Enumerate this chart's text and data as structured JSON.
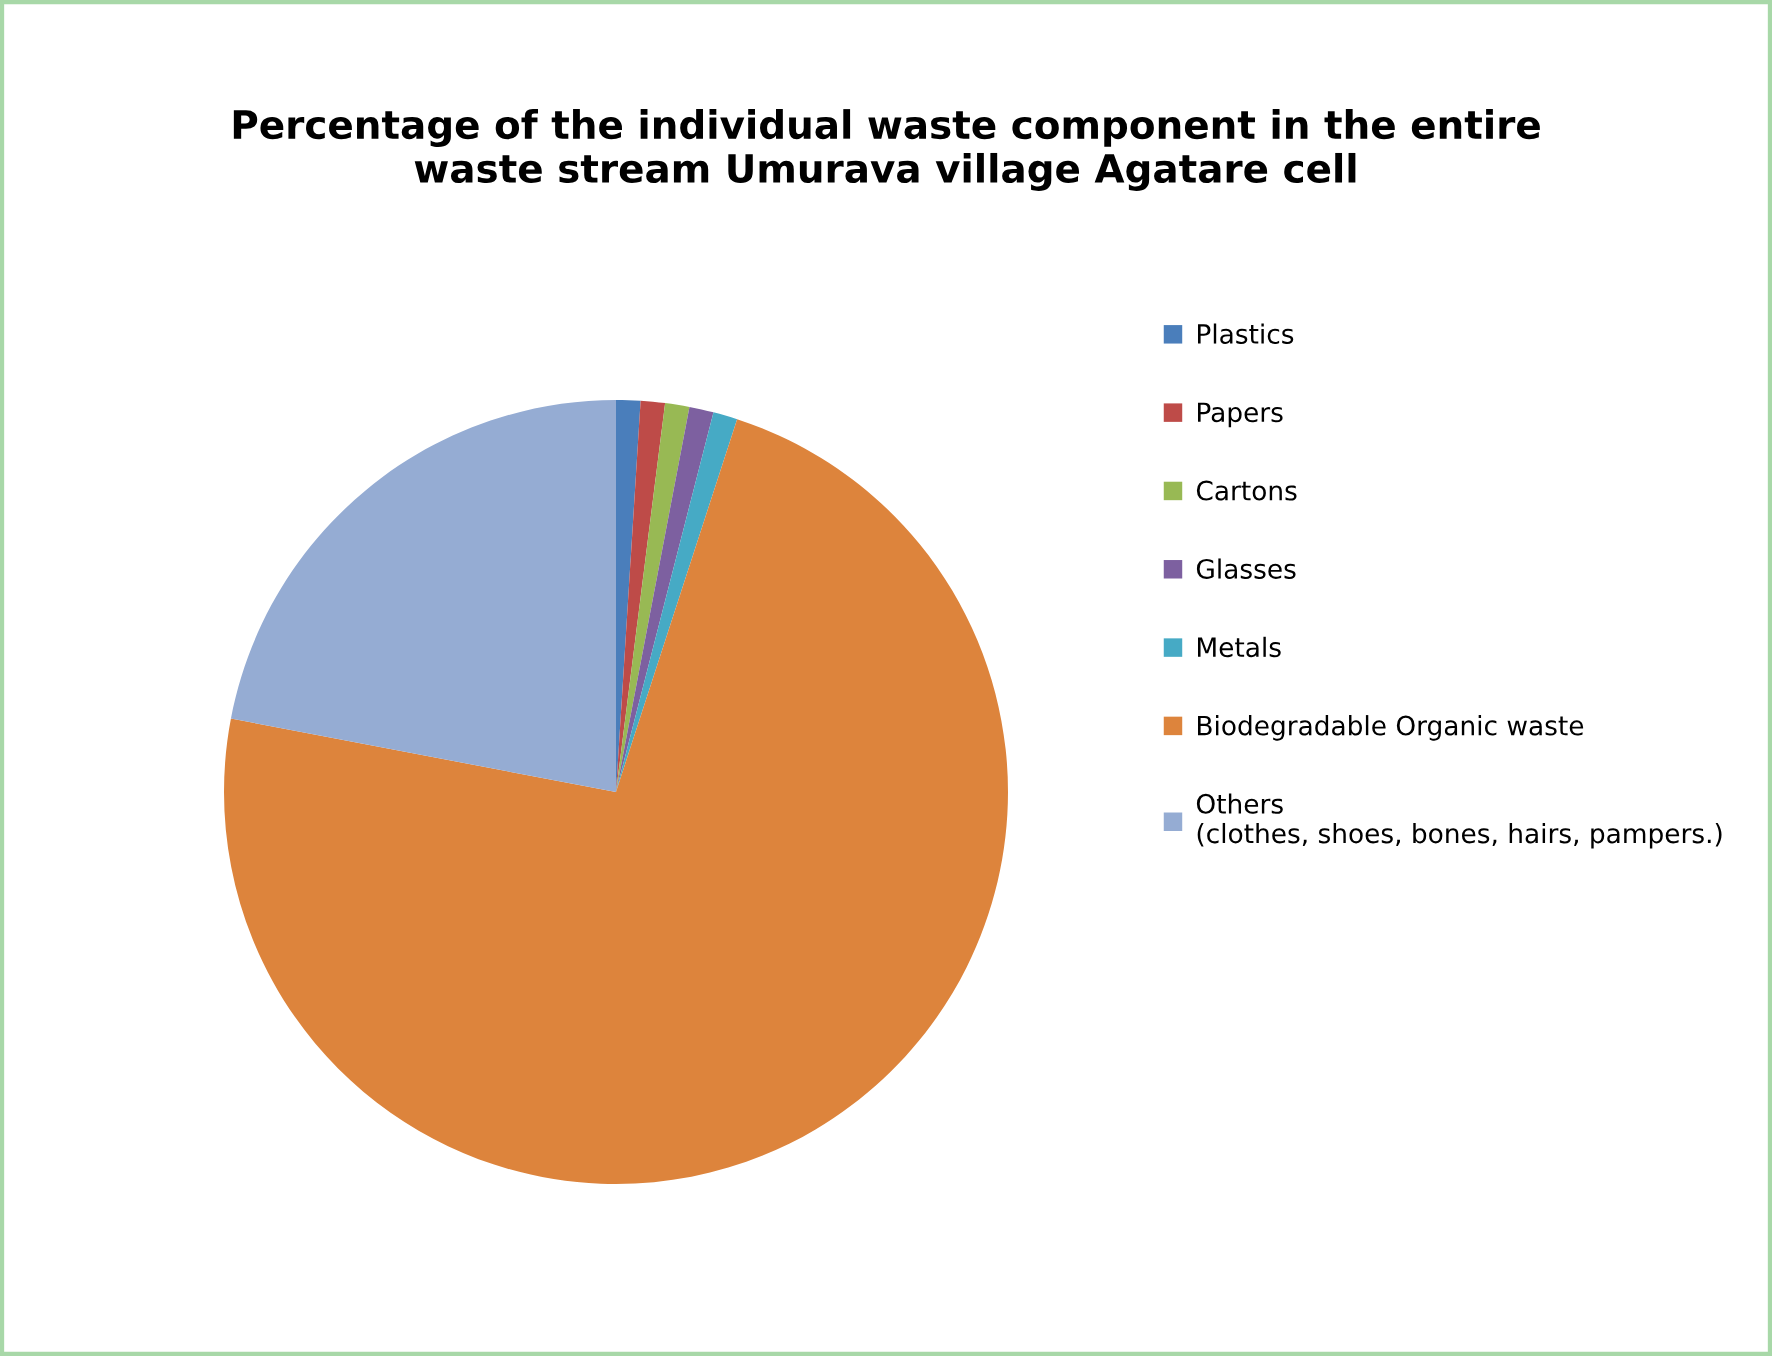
{
  "chart_data": {
    "type": "pie",
    "title": "Percentage of the individual waste component in the entire\nwaste stream Umurava village Agatare cell",
    "categories": [
      "Plastics",
      "Papers",
      "Cartons",
      "Glasses",
      "Metals",
      "Biodegradable Organic waste",
      "Others\n(clothes, shoes, bones, hairs, pampers.)"
    ],
    "values": [
      1,
      1,
      1,
      1,
      1,
      73,
      22
    ],
    "colors": [
      "#4a7ebb",
      "#be4b48",
      "#98b954",
      "#7d60a0",
      "#46aac5",
      "#dd843c",
      "#95acd3"
    ],
    "legend": "right"
  }
}
